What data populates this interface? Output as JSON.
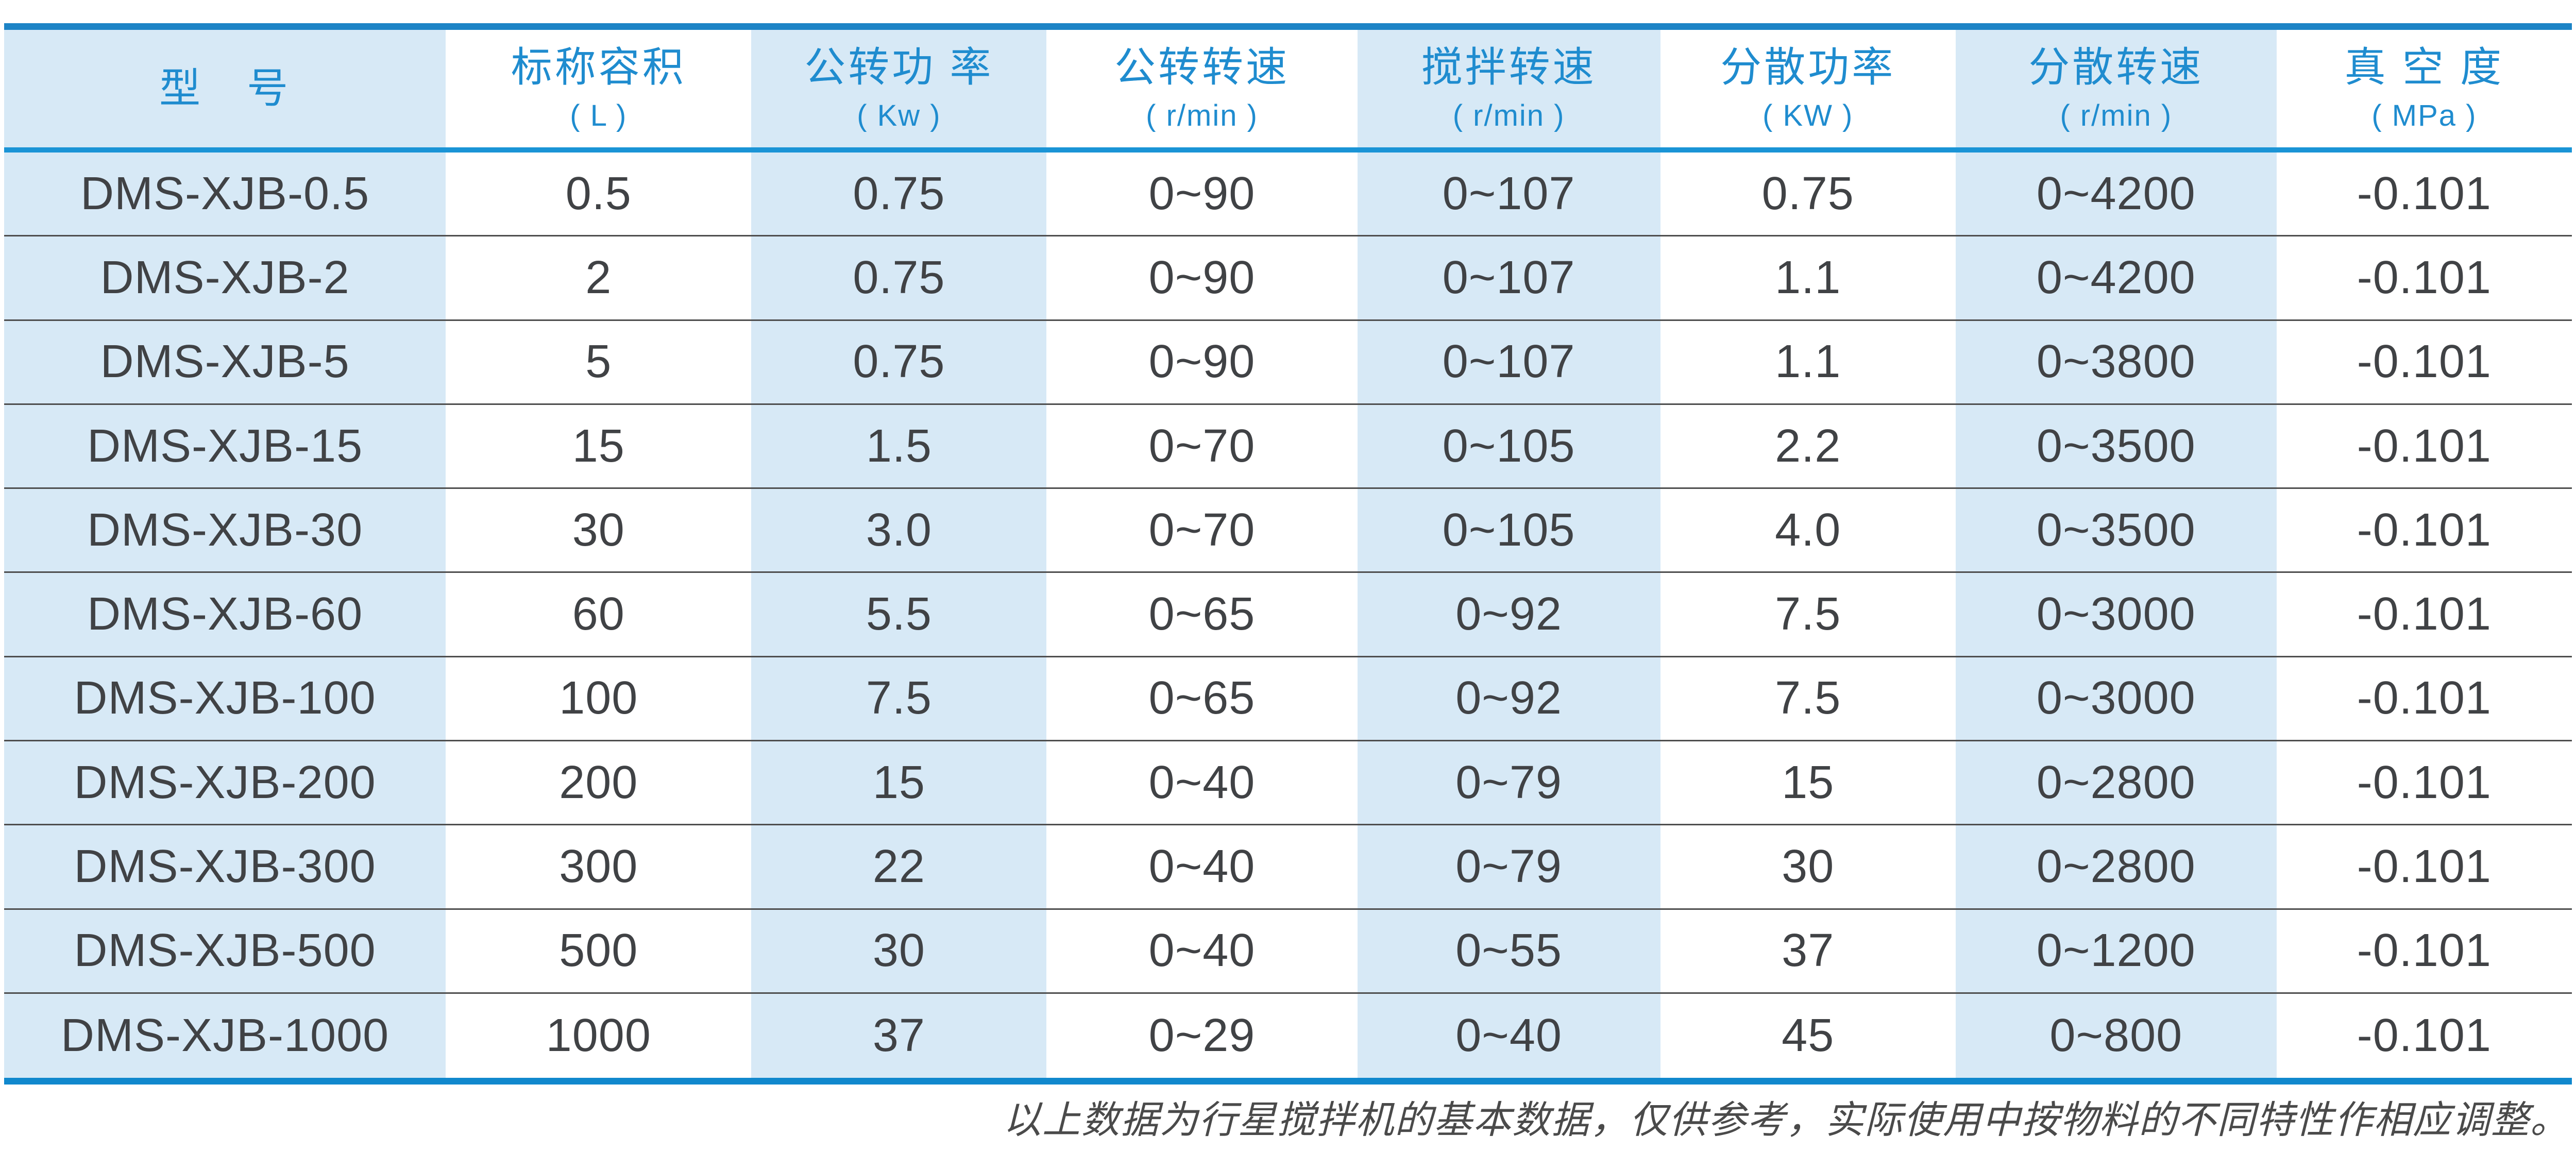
{
  "table": {
    "columns": [
      {
        "id": "model",
        "label": "型　号",
        "unit": "",
        "width_pct": 17.2,
        "striped": true
      },
      {
        "id": "nominal-volume",
        "label": "标称容积",
        "unit": "( L )",
        "width_pct": 11.9,
        "striped": false
      },
      {
        "id": "revolution-power",
        "label": "公转功 率",
        "unit": "( Kw )",
        "width_pct": 11.5,
        "striped": true
      },
      {
        "id": "revolution-speed",
        "label": "公转转速",
        "unit": "( r/min )",
        "width_pct": 12.1,
        "striped": false
      },
      {
        "id": "stirring-speed",
        "label": "搅拌转速",
        "unit": "( r/min )",
        "width_pct": 11.8,
        "striped": true
      },
      {
        "id": "dispersion-power",
        "label": "分散功率",
        "unit": "( KW )",
        "width_pct": 11.5,
        "striped": false
      },
      {
        "id": "dispersion-speed",
        "label": "分散转速",
        "unit": "( r/min )",
        "width_pct": 12.5,
        "striped": true
      },
      {
        "id": "vacuum-degree",
        "label": "真 空 度",
        "unit": "( MPa )",
        "width_pct": 11.5,
        "striped": false
      }
    ],
    "rows": [
      [
        "DMS-XJB-0.5",
        "0.5",
        "0.75",
        "0~90",
        "0~107",
        "0.75",
        "0~4200",
        "-0.101"
      ],
      [
        "DMS-XJB-2",
        "2",
        "0.75",
        "0~90",
        "0~107",
        "1.1",
        "0~4200",
        "-0.101"
      ],
      [
        "DMS-XJB-5",
        "5",
        "0.75",
        "0~90",
        "0~107",
        "1.1",
        "0~3800",
        "-0.101"
      ],
      [
        "DMS-XJB-15",
        "15",
        "1.5",
        "0~70",
        "0~105",
        "2.2",
        "0~3500",
        "-0.101"
      ],
      [
        "DMS-XJB-30",
        "30",
        "3.0",
        "0~70",
        "0~105",
        "4.0",
        "0~3500",
        "-0.101"
      ],
      [
        "DMS-XJB-60",
        "60",
        "5.5",
        "0~65",
        "0~92",
        "7.5",
        "0~3000",
        "-0.101"
      ],
      [
        "DMS-XJB-100",
        "100",
        "7.5",
        "0~65",
        "0~92",
        "7.5",
        "0~3000",
        "-0.101"
      ],
      [
        "DMS-XJB-200",
        "200",
        "15",
        "0~40",
        "0~79",
        "15",
        "0~2800",
        "-0.101"
      ],
      [
        "DMS-XJB-300",
        "300",
        "22",
        "0~40",
        "0~79",
        "30",
        "0~2800",
        "-0.101"
      ],
      [
        "DMS-XJB-500",
        "500",
        "30",
        "0~40",
        "0~55",
        "37",
        "0~1200",
        "-0.101"
      ],
      [
        "DMS-XJB-1000",
        "1000",
        "37",
        "0~29",
        "0~40",
        "45",
        "0~800",
        "-0.101"
      ]
    ]
  },
  "footnote": "以上数据为行星搅拌机的基本数据，仅供参考，实际使用中按物料的不同特性作相应调整。",
  "colors": {
    "top_border": "#1d84c6",
    "header_rule": "#1a94d6",
    "bottom_border": "#1088cd",
    "stripe": "#d7e9f6",
    "header_text": "#1f8ccf",
    "body_text": "#404245",
    "row_line": "#4e4e4e",
    "footnote_text": "#4a4a4a"
  }
}
